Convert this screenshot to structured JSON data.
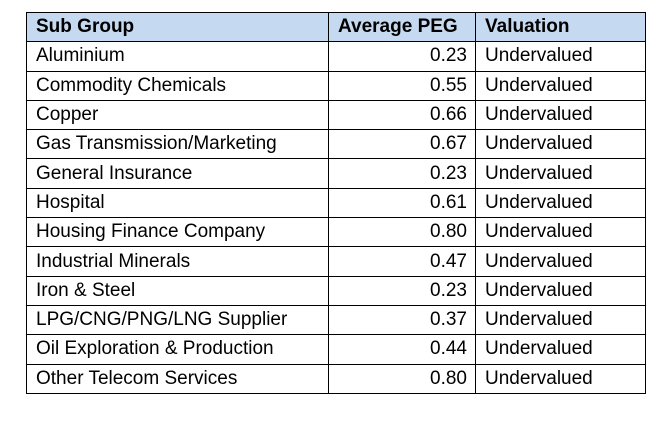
{
  "table": {
    "headers": {
      "sub_group": "Sub Group",
      "average_peg": "Average PEG",
      "valuation": "Valuation"
    },
    "header_color": "#c5d9f1",
    "rows": [
      {
        "sub_group": "Aluminium",
        "average_peg": "0.23",
        "valuation": "Undervalued"
      },
      {
        "sub_group": "Commodity Chemicals",
        "average_peg": "0.55",
        "valuation": "Undervalued"
      },
      {
        "sub_group": "Copper",
        "average_peg": "0.66",
        "valuation": "Undervalued"
      },
      {
        "sub_group": "Gas Transmission/Marketing",
        "average_peg": "0.67",
        "valuation": "Undervalued"
      },
      {
        "sub_group": "General Insurance",
        "average_peg": "0.23",
        "valuation": "Undervalued"
      },
      {
        "sub_group": "Hospital",
        "average_peg": "0.61",
        "valuation": "Undervalued"
      },
      {
        "sub_group": "Housing Finance Company",
        "average_peg": "0.80",
        "valuation": "Undervalued"
      },
      {
        "sub_group": "Industrial Minerals",
        "average_peg": "0.47",
        "valuation": "Undervalued"
      },
      {
        "sub_group": "Iron & Steel",
        "average_peg": "0.23",
        "valuation": "Undervalued"
      },
      {
        "sub_group": "LPG/CNG/PNG/LNG Supplier",
        "average_peg": "0.37",
        "valuation": "Undervalued"
      },
      {
        "sub_group": "Oil Exploration & Production",
        "average_peg": "0.44",
        "valuation": "Undervalued"
      },
      {
        "sub_group": "Other Telecom Services",
        "average_peg": "0.80",
        "valuation": "Undervalued"
      }
    ]
  }
}
